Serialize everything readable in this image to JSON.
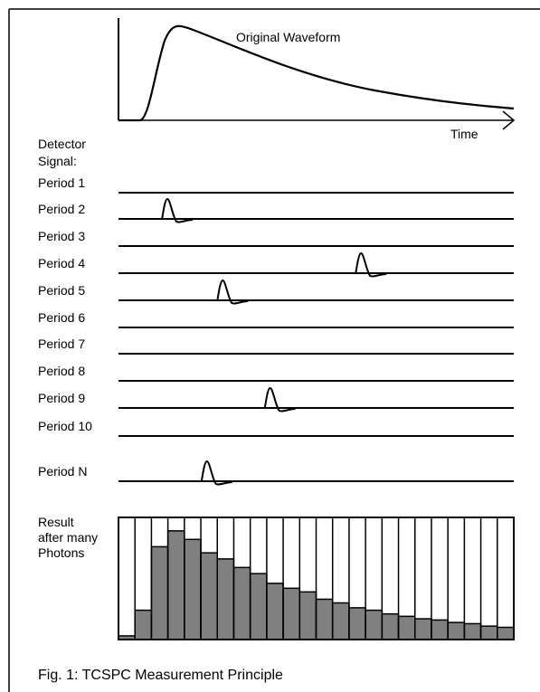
{
  "waveform": {
    "label": "Original Waveform",
    "time_label": "Time"
  },
  "detector_label_lines": [
    "Detector",
    "Signal:"
  ],
  "periods": [
    {
      "label": "Period 1",
      "pulse": null
    },
    {
      "label": "Period 2",
      "pulse": 0.11
    },
    {
      "label": "Period 3",
      "pulse": null
    },
    {
      "label": "Period 4",
      "pulse": 0.6
    },
    {
      "label": "Period 5",
      "pulse": 0.25
    },
    {
      "label": "Period 6",
      "pulse": null
    },
    {
      "label": "Period 7",
      "pulse": null
    },
    {
      "label": "Period 8",
      "pulse": null
    },
    {
      "label": "Period 9",
      "pulse": 0.37
    },
    {
      "label": "Period 10",
      "pulse": null
    },
    {
      "label": "Period N",
      "pulse": 0.21
    }
  ],
  "result_label_lines": [
    "Result",
    "after many",
    "Photons"
  ],
  "histogram": {
    "counts": [
      3,
      24,
      76,
      89,
      82,
      71,
      66,
      59,
      54,
      46,
      42,
      39,
      33,
      30,
      26,
      24,
      21,
      19,
      17,
      16,
      14,
      13,
      11,
      10
    ],
    "max": 100,
    "fill_color": "#808080"
  },
  "caption": "Fig. 1: TCSPC Measurement Principle",
  "colors": {
    "line": "#000000",
    "bar_fill": "#808080",
    "background": "#ffffff"
  }
}
